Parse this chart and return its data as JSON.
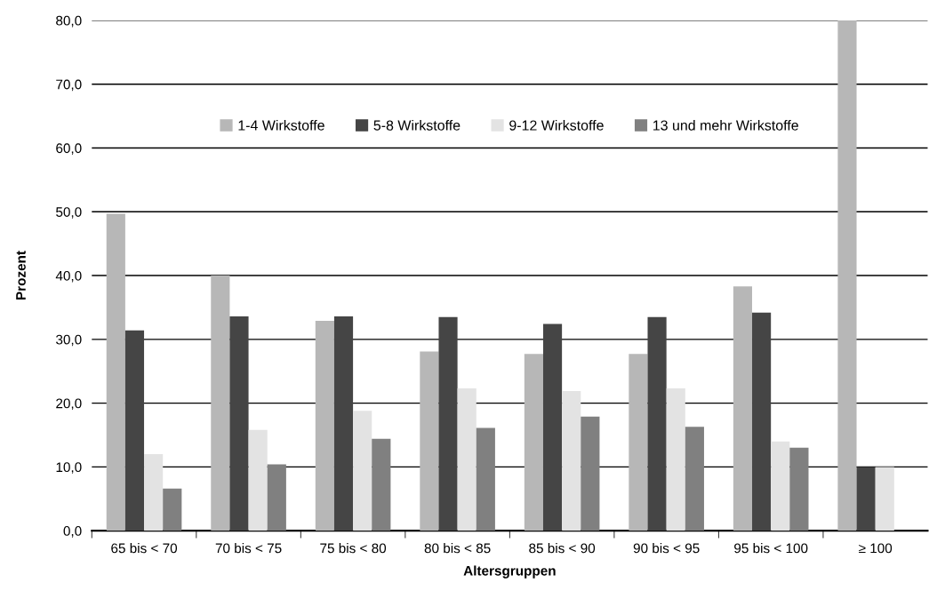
{
  "chart_data": {
    "type": "bar",
    "xlabel": "Altersgruppen",
    "ylabel": "Prozent",
    "categories": [
      "65 bis < 70",
      "70 bis < 75",
      "75 bis < 80",
      "80 bis < 85",
      "85 bis < 90",
      "90 bis < 95",
      "95 bis < 100",
      "≥ 100"
    ],
    "series": [
      {
        "name": "1-4 Wirkstoffe",
        "color": "#b7b7b7",
        "values": [
          49.7,
          40.0,
          32.9,
          28.1,
          27.7,
          27.7,
          38.3,
          80.0
        ]
      },
      {
        "name": "5-8 Wirkstoffe",
        "color": "#454545",
        "values": [
          31.4,
          33.6,
          33.6,
          33.5,
          32.4,
          33.5,
          34.2,
          10.0
        ]
      },
      {
        "name": "9-12 Wirkstoffe",
        "color": "#e3e3e3",
        "values": [
          12.0,
          15.8,
          18.8,
          22.3,
          21.9,
          22.3,
          14.0,
          10.0
        ]
      },
      {
        "name": "13 und mehr Wirkstoffe",
        "color": "#808080",
        "values": [
          6.6,
          10.4,
          14.4,
          16.1,
          17.9,
          16.3,
          13.0,
          null
        ]
      }
    ],
    "ylim": [
      0,
      80
    ],
    "yticks": [
      {
        "value": 0,
        "label": "0,0"
      },
      {
        "value": 10,
        "label": "10,0"
      },
      {
        "value": 20,
        "label": "20,0"
      },
      {
        "value": 30,
        "label": "30,0"
      },
      {
        "value": 40,
        "label": "40,0"
      },
      {
        "value": 50,
        "label": "50,0"
      },
      {
        "value": 60,
        "label": "60,0"
      },
      {
        "value": 70,
        "label": "70,0"
      },
      {
        "value": 80,
        "label": "80,0"
      }
    ],
    "grid": "y",
    "legend": "top"
  }
}
